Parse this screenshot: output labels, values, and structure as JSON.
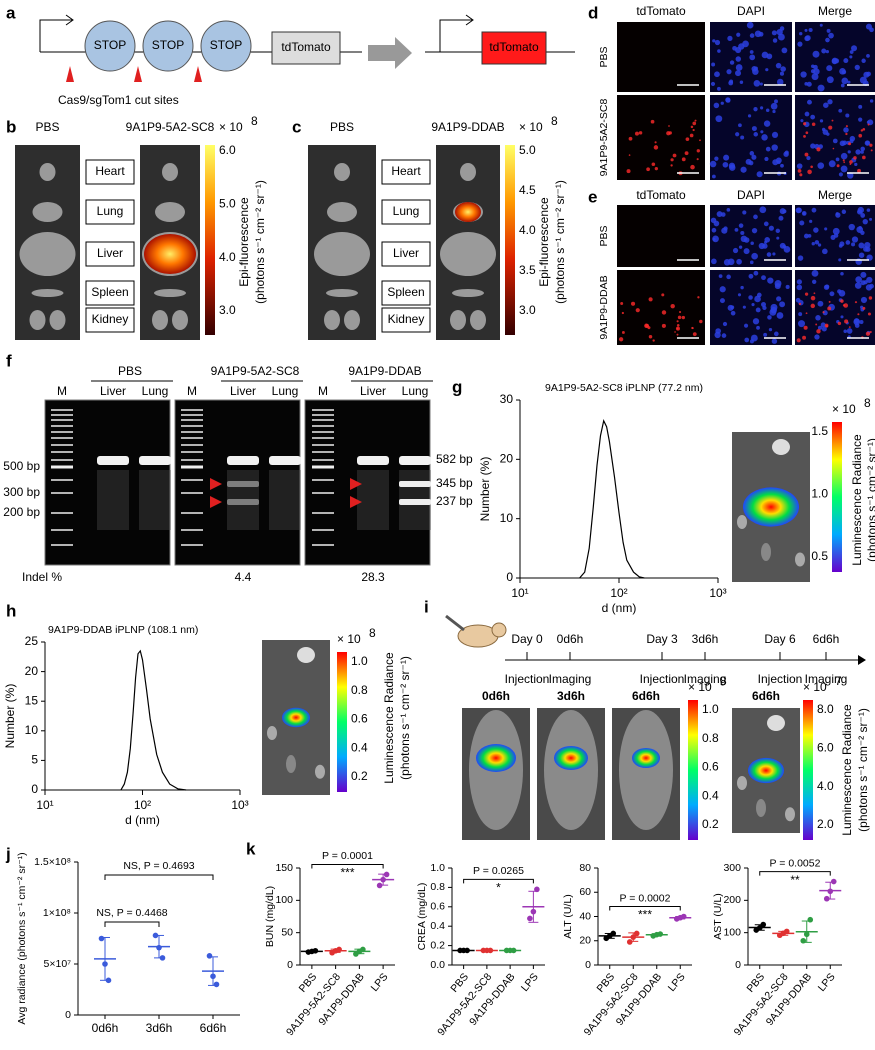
{
  "panel_labels": [
    "a",
    "b",
    "c",
    "d",
    "e",
    "f",
    "g",
    "h",
    "i",
    "j",
    "k"
  ],
  "a": {
    "stop": [
      "STOP",
      "STOP",
      "STOP"
    ],
    "reporter_off": "tdTomato",
    "reporter_on": "tdTomato",
    "caption": "Cas9/sgTom1 cut sites"
  },
  "b": {
    "groups": [
      "PBS",
      "9A1P9-5A2-SC8"
    ],
    "organs": [
      "Heart",
      "Lung",
      "Liver",
      "Spleen",
      "Kidney"
    ],
    "multiplier": "× 10",
    "exponent": "8",
    "colorbar": [
      "6.0",
      "5.0",
      "4.0",
      "3.0"
    ],
    "label": "Epi-fluorescence",
    "units": "(photons s⁻¹ cm⁻² sr⁻¹)"
  },
  "c": {
    "groups": [
      "PBS",
      "9A1P9-DDAB"
    ],
    "organs": [
      "Heart",
      "Lung",
      "Liver",
      "Spleen",
      "Kidney"
    ],
    "multiplier": "× 10",
    "exponent": "8",
    "colorbar": [
      "5.0",
      "4.5",
      "4.0",
      "3.5",
      "3.0"
    ],
    "label": "Epi-fluorescence",
    "units": "(photons s⁻¹ cm⁻² sr⁻¹)"
  },
  "d": {
    "columns": [
      "tdTomato",
      "DAPI",
      "Merge"
    ],
    "rows": [
      "PBS",
      "9A1P9-5A2-SC8"
    ]
  },
  "e": {
    "columns": [
      "tdTomato",
      "DAPI",
      "Merge"
    ],
    "rows": [
      "PBS",
      "9A1P9-DDAB"
    ]
  },
  "f": {
    "groups": [
      {
        "name": "PBS",
        "lanes": [
          "Liver",
          "Lung"
        ]
      },
      {
        "name": "9A1P9-5A2-SC8",
        "lanes": [
          "Liver",
          "Lung"
        ]
      },
      {
        "name": "9A1P9-DDAB",
        "lanes": [
          "Liver",
          "Lung"
        ]
      }
    ],
    "markers": [
      "M",
      "M",
      "M"
    ],
    "left_sizes": [
      "500 bp",
      "300 bp",
      "200 bp"
    ],
    "right_sizes": [
      "582 bp",
      "345 bp",
      "237 bp"
    ],
    "indel_label": "Indel %",
    "indel_values": [
      4.4,
      28.3
    ]
  },
  "g": {
    "multiplier": "× 10",
    "exponent": "8",
    "colorbar": [
      "1.5",
      "1.0",
      "0.5"
    ],
    "label": "Luminescence Radiance",
    "units": "(photons s⁻¹ cm⁻² sr⁻¹)"
  },
  "h": {
    "multiplier": "× 10",
    "exponent": "8",
    "colorbar": [
      "1.0",
      "0.8",
      "0.6",
      "0.4",
      "0.2"
    ],
    "label": "Luminescence Radiance",
    "units": "(photons s⁻¹ cm⁻² sr⁻¹)"
  },
  "i": {
    "steps": [
      {
        "day": "Day 0",
        "injection": "Injection",
        "time": "0d6h",
        "imaging": "Imaging"
      },
      {
        "day": "Day 3",
        "injection": "Injection",
        "time": "3d6h",
        "imaging": "Imaging"
      },
      {
        "day": "Day 6",
        "injection": "Injection",
        "time": "6d6h",
        "imaging": "Imaging"
      }
    ],
    "images": [
      "0d6h",
      "3d6h",
      "6d6h"
    ],
    "colorbar1": {
      "multiplier": "× 10",
      "exponent": "8",
      "ticks": [
        "1.0",
        "0.8",
        "0.6",
        "0.4",
        "0.2"
      ]
    },
    "organ_image": "6d6h",
    "colorbar2": {
      "multiplier": "× 10",
      "exponent": "7",
      "ticks": [
        "8.0",
        "6.0",
        "4.0",
        "2.0"
      ]
    },
    "label": "Luminescence Radiance",
    "units": "(photons s⁻¹ cm⁻² sr⁻¹)"
  },
  "chart_data": [
    {
      "type": "line",
      "title": "9A1P9-5A2-SC8 iPLNP (77.2 nm)",
      "x_label": "d (nm)",
      "y_label": "Number (%)",
      "color": "#000000",
      "x": [
        40,
        45,
        50,
        55,
        60,
        65,
        70,
        75,
        80,
        90,
        100,
        110,
        120,
        140,
        160,
        180
      ],
      "values": [
        0,
        1,
        5,
        12,
        19,
        24,
        26.5,
        25.5,
        23,
        17,
        11,
        6,
        3,
        1,
        0.2,
        0
      ],
      "xlog": true,
      "xlim": [
        10,
        1000
      ],
      "xticks": [
        {
          "value": 10,
          "label": "10¹"
        },
        {
          "value": 100,
          "label": "10²"
        },
        {
          "value": 1000,
          "label": "10³"
        }
      ],
      "ylim": [
        0,
        30
      ],
      "yticks": [
        0,
        10,
        20,
        30
      ]
    },
    {
      "type": "line",
      "title": "9A1P9-DDAB iPLNP (108.1 nm)",
      "x_label": "d (nm)",
      "y_label": "Number (%)",
      "color": "#000000",
      "x": [
        60,
        65,
        70,
        75,
        80,
        85,
        90,
        95,
        100,
        110,
        120,
        140,
        160,
        190,
        230,
        280
      ],
      "values": [
        0,
        1,
        3,
        7,
        13,
        19,
        23,
        23.5,
        22,
        17,
        12,
        6,
        3,
        1,
        0.2,
        0
      ],
      "xlog": true,
      "xlim": [
        10,
        1000
      ],
      "xticks": [
        {
          "value": 10,
          "label": "10¹"
        },
        {
          "value": 100,
          "label": "10²"
        },
        {
          "value": 1000,
          "label": "10³"
        }
      ],
      "ylim": [
        0,
        25
      ],
      "yticks": [
        0,
        5,
        10,
        15,
        20,
        25
      ]
    },
    {
      "type": "dot_plot",
      "y_label": "Avg radiance (photons s⁻¹ cm⁻² sr⁻¹)",
      "categories": [
        "0d6h",
        "3d6h",
        "6d6h"
      ],
      "color": "#3b5bdb",
      "points": [
        [
          75000000,
          50000000,
          34000000
        ],
        [
          78000000,
          66000000,
          56000000
        ],
        [
          58000000,
          38000000,
          30000000
        ]
      ],
      "mean": [
        55000000,
        67000000,
        43000000
      ],
      "sd": [
        21000000,
        11000000,
        14000000
      ],
      "ylim": [
        0,
        150000000
      ],
      "yticks": [
        0,
        {
          "value": 50000000,
          "label": "5×10⁷"
        },
        {
          "value": 100000000,
          "label": "1×10⁸"
        },
        {
          "value": 150000000,
          "label": "1.5×10⁸"
        }
      ],
      "annotations": [
        "NS, P = 0.4468",
        "NS, P = 0.4693"
      ]
    },
    {
      "type": "dot_plot",
      "y_label": "BUN (mg/dL)",
      "categories": [
        "PBS",
        "9A1P9-5A2-SC8",
        "9A1P9-DDAB",
        "LPS"
      ],
      "colors": [
        "#000000",
        "#e03131",
        "#2f9e44",
        "#9c36b5"
      ],
      "points": [
        [
          20,
          21,
          22
        ],
        [
          19,
          22,
          24
        ],
        [
          17,
          21,
          24
        ],
        [
          123,
          132,
          140
        ]
      ],
      "mean": [
        21,
        22,
        21,
        132
      ],
      "sd": [
        1,
        2.5,
        3.5,
        8.5
      ],
      "ylim": [
        0,
        150
      ],
      "yticks": [
        0,
        50,
        100,
        150
      ],
      "p_label": "P = 0.0001",
      "stars": "***"
    },
    {
      "type": "dot_plot",
      "y_label": "CREA (mg/dL)",
      "categories": [
        "PBS",
        "9A1P9-5A2-SC8",
        "9A1P9-DDAB",
        "LPS"
      ],
      "colors": [
        "#000000",
        "#e03131",
        "#2f9e44",
        "#9c36b5"
      ],
      "points": [
        [
          0.15,
          0.15,
          0.15
        ],
        [
          0.15,
          0.15,
          0.15
        ],
        [
          0.15,
          0.15,
          0.15
        ],
        [
          0.48,
          0.55,
          0.78
        ]
      ],
      "mean": [
        0.15,
        0.15,
        0.15,
        0.6
      ],
      "sd": [
        0,
        0,
        0,
        0.16
      ],
      "ylim": [
        0,
        1
      ],
      "yticks": [
        {
          "value": 0,
          "label": "0.0"
        },
        0.2,
        0.4,
        0.6,
        0.8,
        {
          "value": 1,
          "label": "1.0"
        }
      ],
      "p_label": "P = 0.0265",
      "stars": "*"
    },
    {
      "type": "dot_plot",
      "y_label": "ALT (U/L)",
      "categories": [
        "PBS",
        "9A1P9-5A2-SC8",
        "9A1P9-DDAB",
        "LPS"
      ],
      "colors": [
        "#000000",
        "#e03131",
        "#2f9e44",
        "#9c36b5"
      ],
      "points": [
        [
          22,
          24,
          26
        ],
        [
          19,
          23,
          26
        ],
        [
          24,
          25,
          25.5
        ],
        [
          38,
          39,
          40
        ]
      ],
      "mean": [
        24,
        23,
        25,
        39
      ],
      "sd": [
        2,
        3.5,
        0.8,
        1
      ],
      "ylim": [
        0,
        80
      ],
      "yticks": [
        0,
        20,
        40,
        60,
        80
      ],
      "p_label": "P = 0.0002",
      "stars": "***"
    },
    {
      "type": "dot_plot",
      "y_label": "AST (U/L)",
      "categories": [
        "PBS",
        "9A1P9-5A2-SC8",
        "9A1P9-DDAB",
        "LPS"
      ],
      "colors": [
        "#000000",
        "#e03131",
        "#2f9e44",
        "#9c36b5"
      ],
      "points": [
        [
          108,
          115,
          125
        ],
        [
          92,
          98,
          104
        ],
        [
          75,
          95,
          140
        ],
        [
          205,
          228,
          258
        ]
      ],
      "mean": [
        116,
        98,
        103,
        230
      ],
      "sd": [
        8.5,
        6,
        33,
        26
      ],
      "ylim": [
        0,
        300
      ],
      "yticks": [
        0,
        100,
        200,
        300
      ],
      "p_label": "P = 0.0052",
      "stars": "**"
    }
  ]
}
